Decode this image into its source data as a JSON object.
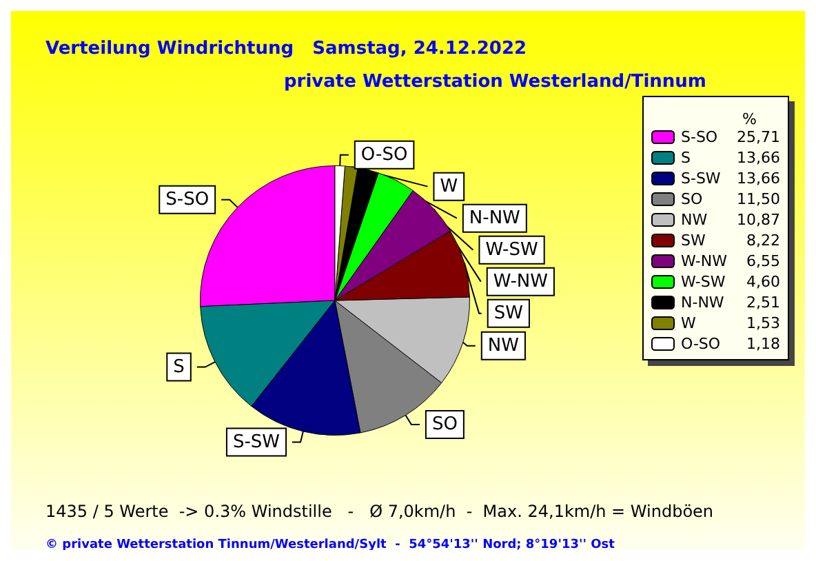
{
  "chart_data": {
    "type": "pie",
    "title": "Verteilung Windrichtung   Samstag, 24.12.2022",
    "subtitle": "private Wetterstation Westerland/Tinnum",
    "legend_title": "%",
    "categories": [
      "S-SO",
      "S",
      "S-SW",
      "SO",
      "NW",
      "SW",
      "W-NW",
      "W-SW",
      "N-NW",
      "W",
      "O-SO"
    ],
    "values": [
      25.71,
      13.66,
      13.66,
      11.5,
      10.87,
      8.22,
      6.55,
      4.6,
      2.51,
      1.53,
      1.18
    ],
    "value_labels": [
      "25,71",
      "13,66",
      "13,66",
      "11,50",
      "10,87",
      "8,22",
      "6,55",
      "4,60",
      "2,51",
      "1,53",
      "1,18"
    ],
    "colors": [
      "#ff00ff",
      "#008080",
      "#000080",
      "#808080",
      "#c0c0c0",
      "#800000",
      "#800080",
      "#00ff00",
      "#000000",
      "#808000",
      "#ffffff"
    ],
    "legend": "right",
    "annotations": [
      "1435 / 5 Werte  -> 0.3% Windstille   -   Ø 7,0km/h  -  Max. 24,1km/h = Windböen",
      "© private Wetterstation Tinnum/Westerland/Sylt  -  54°54'13'' Nord; 8°19'13'' Ost"
    ]
  }
}
